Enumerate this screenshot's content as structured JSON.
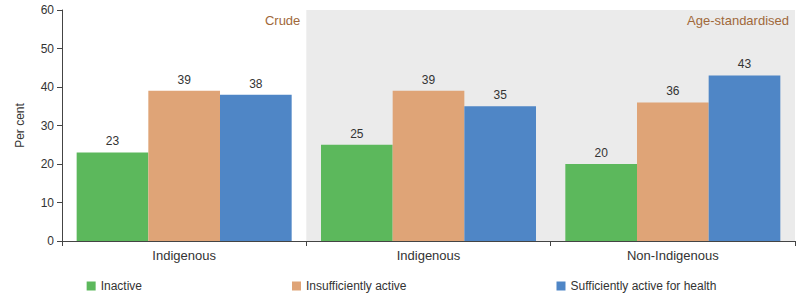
{
  "chart_data": {
    "type": "bar",
    "categories": [
      "Indigenous",
      "Indigenous",
      "Non-Indigenous"
    ],
    "series": [
      {
        "name": "Inactive",
        "color": "#5cb85c",
        "values": [
          23,
          25,
          20
        ]
      },
      {
        "name": "Insufficiently active",
        "color": "#dfa477",
        "values": [
          39,
          39,
          36
        ]
      },
      {
        "name": "Sufficiently active for health",
        "color": "#4f86c6",
        "values": [
          38,
          35,
          43
        ]
      }
    ],
    "y_label": "Per cent",
    "ylim": [
      0,
      60
    ],
    "yticks": [
      0,
      10,
      20,
      30,
      40,
      50,
      60
    ],
    "grid": false,
    "legend": "bottom",
    "data_labels": true,
    "annotations": [
      "Crude",
      "Age-standardised"
    ]
  }
}
